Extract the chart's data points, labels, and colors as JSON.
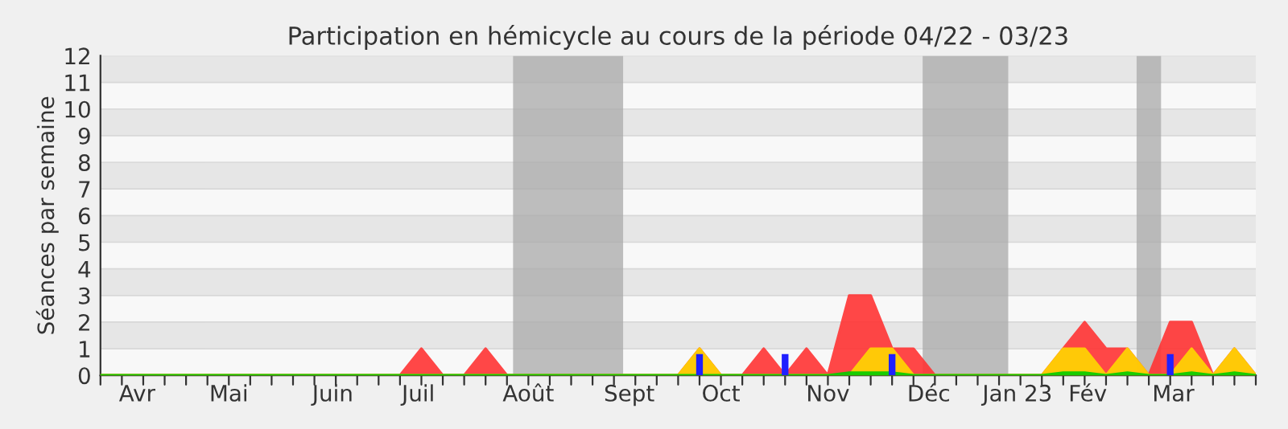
{
  "chart_data": {
    "type": "area",
    "title": "Participation en hémicycle au cours de la période 04/22 - 03/23",
    "ylabel": "Séances par semaine",
    "x": [
      "2022-03-28",
      "2022-04-04",
      "2022-04-11",
      "2022-04-18",
      "2022-04-25",
      "2022-05-02",
      "2022-05-09",
      "2022-05-16",
      "2022-05-23",
      "2022-05-30",
      "2022-06-06",
      "2022-06-13",
      "2022-06-20",
      "2022-06-27",
      "2022-07-04",
      "2022-07-11",
      "2022-07-18",
      "2022-07-25",
      "2022-08-01",
      "2022-08-08",
      "2022-08-15",
      "2022-08-22",
      "2022-08-29",
      "2022-09-05",
      "2022-09-12",
      "2022-09-19",
      "2022-09-26",
      "2022-10-03",
      "2022-10-10",
      "2022-10-17",
      "2022-10-24",
      "2022-10-31",
      "2022-11-07",
      "2022-11-14",
      "2022-11-21",
      "2022-11-28",
      "2022-12-05",
      "2022-12-12",
      "2022-12-19",
      "2022-12-26",
      "2023-01-02",
      "2023-01-09",
      "2023-01-16",
      "2023-01-23",
      "2023-01-30",
      "2023-02-06",
      "2023-02-13",
      "2023-02-20",
      "2023-02-27",
      "2023-03-06",
      "2023-03-13",
      "2023-03-20",
      "2023-03-27",
      "2023-04-03",
      "2023-04-10"
    ],
    "series": [
      {
        "color": "#ff3333",
        "values": [
          0,
          0,
          0,
          0,
          0,
          0,
          0,
          0,
          0,
          0,
          0,
          0,
          0,
          0,
          0,
          1,
          0,
          0,
          1,
          0,
          0,
          0,
          0,
          0,
          0,
          0,
          0,
          0,
          1,
          0,
          0,
          1,
          0,
          1,
          0,
          3,
          3,
          1,
          1,
          0,
          0,
          0,
          0,
          0,
          0,
          1,
          2,
          1,
          1,
          0,
          2,
          2,
          0,
          1,
          0
        ]
      },
      {
        "color": "#ffd700",
        "values": [
          0,
          0,
          0,
          0,
          0,
          0,
          0,
          0,
          0,
          0,
          0,
          0,
          0,
          0,
          0,
          0,
          0,
          0,
          0,
          0,
          0,
          0,
          0,
          0,
          0,
          0,
          0,
          0,
          1,
          0,
          0,
          0,
          0,
          0,
          0,
          0,
          1,
          1,
          0,
          0,
          0,
          0,
          0,
          0,
          0,
          1,
          1,
          0,
          1,
          0,
          0,
          1,
          0,
          1,
          0
        ]
      },
      {
        "color": "#00cc00",
        "values": [
          0,
          0,
          0,
          0,
          0,
          0,
          0,
          0,
          0,
          0,
          0,
          0,
          0,
          0,
          0,
          0,
          0,
          0,
          0,
          0,
          0,
          0,
          0,
          0,
          0,
          0,
          0,
          0,
          0,
          0,
          0,
          0,
          0,
          0,
          0,
          0.1,
          0.1,
          0.1,
          0,
          0,
          0,
          0,
          0,
          0,
          0,
          0.1,
          0.1,
          0,
          0.1,
          0,
          0,
          0.1,
          0,
          0.1,
          0
        ]
      },
      {
        "type": "bar",
        "color": "#2020ff",
        "x": [
          "2022-10-10",
          "2022-11-07",
          "2022-12-12",
          "2023-03-13"
        ],
        "values": [
          0.8,
          0.8,
          0.8,
          0.8
        ]
      }
    ],
    "xlim": [
      "2022-03-28",
      "2023-04-10"
    ],
    "xticks": [
      {
        "value": "2022-04-09",
        "label": "Avr"
      },
      {
        "value": "2022-05-09",
        "label": "Mai"
      },
      {
        "value": "2022-06-12",
        "label": "Juin"
      },
      {
        "value": "2022-07-10",
        "label": "Juil"
      },
      {
        "value": "2022-08-15",
        "label": "Août"
      },
      {
        "value": "2022-09-17",
        "label": "Sept"
      },
      {
        "value": "2022-10-17",
        "label": "Oct"
      },
      {
        "value": "2022-11-21",
        "label": "Nov"
      },
      {
        "value": "2022-12-24",
        "label": "Déc"
      },
      {
        "value": "2023-01-22",
        "label": "Jan 23"
      },
      {
        "value": "2023-02-14",
        "label": "Fév"
      },
      {
        "value": "2023-03-14",
        "label": "Mar"
      }
    ],
    "ylim": [
      0,
      12
    ],
    "yticks": [
      0,
      1,
      2,
      3,
      4,
      5,
      6,
      7,
      8,
      9,
      10,
      11,
      12
    ],
    "grid": "y",
    "bands": [
      {
        "axis": "x",
        "from": "2022-08-10",
        "to": "2022-09-15",
        "color": "#aaaaaa"
      },
      {
        "axis": "x",
        "from": "2022-12-22",
        "to": "2023-01-19",
        "color": "#aaaaaa"
      },
      {
        "axis": "x",
        "from": "2023-03-02",
        "to": "2023-03-10",
        "color": "#aaaaaa"
      }
    ]
  }
}
